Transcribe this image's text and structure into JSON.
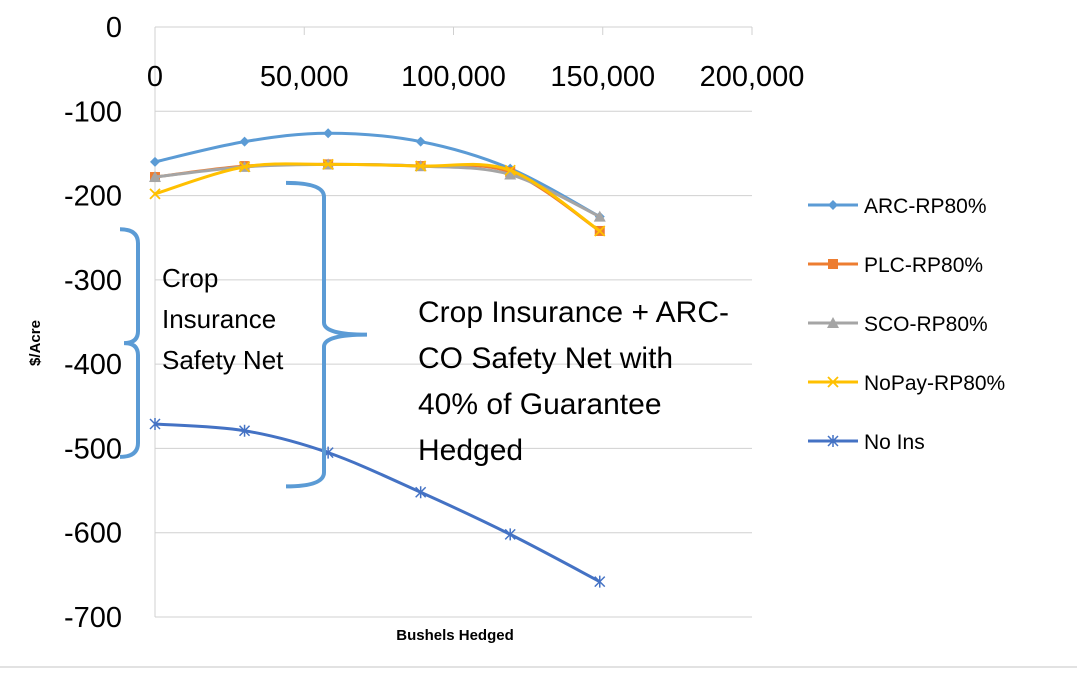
{
  "chart_data": {
    "type": "line",
    "title": "",
    "xlabel": "Bushels Hedged",
    "ylabel": "$/Acre",
    "xlim": [
      0,
      200000
    ],
    "ylim": [
      -700,
      0
    ],
    "x_ticks": [
      "0",
      "50,000",
      "100,000",
      "150,000",
      "200,000"
    ],
    "y_ticks": [
      "0",
      "-100",
      "-200",
      "-300",
      "-400",
      "-500",
      "-600",
      "-700"
    ],
    "grid": "horizontal",
    "legend_position": "right",
    "x": [
      0,
      30000,
      58000,
      89000,
      119000,
      149000
    ],
    "series": [
      {
        "name": "ARC-RP80%",
        "color": "#5B9BD5",
        "marker": "diamond",
        "values": [
          -160,
          -136,
          -126,
          -136,
          -168,
          -225
        ]
      },
      {
        "name": "PLC-RP80%",
        "color": "#ED7D31",
        "marker": "square",
        "values": [
          -178,
          -165,
          -163,
          -165,
          -172,
          -242
        ]
      },
      {
        "name": "SCO-RP80%",
        "color": "#A5A5A5",
        "marker": "triangle",
        "values": [
          -178,
          -166,
          -163,
          -165,
          -175,
          -225
        ]
      },
      {
        "name": "NoPay-RP80%",
        "color": "#FFC000",
        "marker": "x",
        "values": [
          -198,
          -166,
          -163,
          -165,
          -170,
          -242
        ]
      },
      {
        "name": "No Ins",
        "color": "#4472C4",
        "marker": "star",
        "values": [
          -471,
          -479,
          -505,
          -552,
          -602,
          -658
        ]
      }
    ],
    "annotations": [
      {
        "lines": [
          "Crop",
          "Insurance",
          "Safety Net"
        ],
        "span": [
          -240,
          -510
        ]
      },
      {
        "lines": [
          "Crop Insurance + ARC-",
          "CO Safety Net with",
          "40% of Guarantee",
          "Hedged"
        ],
        "span": [
          -185,
          -545
        ]
      }
    ]
  }
}
